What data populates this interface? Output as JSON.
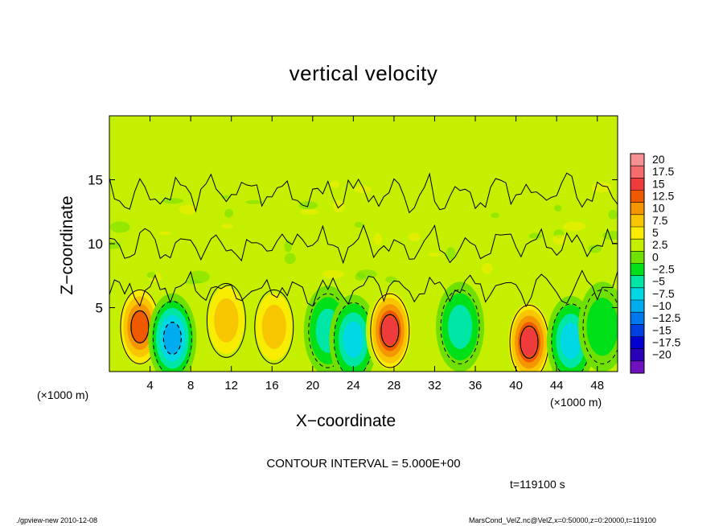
{
  "chart_data": {
    "type": "heatmap",
    "title": "vertical velocity",
    "xlabel": "X−coordinate",
    "ylabel": "Z−coordinate",
    "x_unit_label": "(×1000 m)",
    "x_ticks": [
      4,
      8,
      12,
      16,
      20,
      24,
      28,
      32,
      36,
      40,
      44,
      48
    ],
    "y_ticks": [
      5,
      10,
      15
    ],
    "xlim": [
      0,
      50
    ],
    "ylim": [
      0,
      20
    ],
    "colorbar_levels": [
      "20",
      "17.5",
      "15",
      "12.5",
      "10",
      "7.5",
      "5",
      "2.5",
      "0",
      "−2.5",
      "−5",
      "−7.5",
      "−10",
      "−12.5",
      "−15",
      "−17.5",
      "−20"
    ],
    "colorbar_colors": [
      "#f79090",
      "#f46c6c",
      "#ef3b3b",
      "#ef5a00",
      "#f59500",
      "#f8c600",
      "#f8ec00",
      "#c4f000",
      "#70e000",
      "#00e018",
      "#00e6a6",
      "#00d8e6",
      "#00acf0",
      "#0078ee",
      "#0040e0",
      "#0000d0",
      "#2800b8",
      "#6e12c0"
    ],
    "contour_interval": "CONTOUR INTERVAL = 5.000E+00",
    "time": "t=119100 s",
    "cells": [
      {
        "x": 3,
        "z": 3.5,
        "w": 11
      },
      {
        "x": 6.2,
        "z": 2.6,
        "w": -11
      },
      {
        "x": 11.5,
        "z": 4,
        "w": 6
      },
      {
        "x": 16.2,
        "z": 3.5,
        "w": 6
      },
      {
        "x": 21.5,
        "z": 3.2,
        "w": -7
      },
      {
        "x": 24,
        "z": 2.5,
        "w": -8
      },
      {
        "x": 27.6,
        "z": 3.2,
        "w": 13
      },
      {
        "x": 34.5,
        "z": 3.5,
        "w": -6
      },
      {
        "x": 41.3,
        "z": 2.3,
        "w": 14
      },
      {
        "x": 45.4,
        "z": 2.4,
        "w": -8
      },
      {
        "x": 48.5,
        "z": 3.5,
        "w": -3
      }
    ]
  },
  "footer": {
    "left": "./gpview-new  2010-12-08",
    "right": "MarsCond_VelZ.nc@VelZ,x=0:50000,z=0:20000,t=119100"
  }
}
